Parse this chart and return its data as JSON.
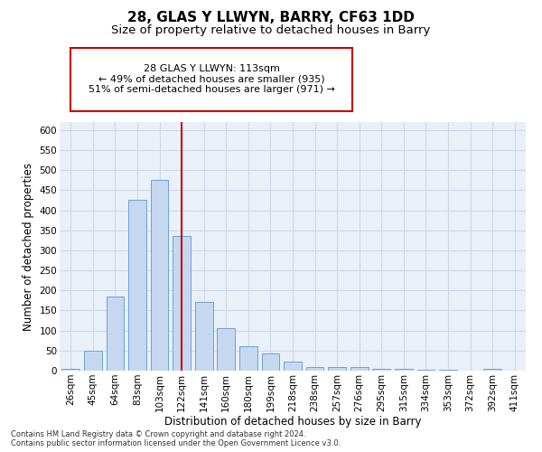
{
  "title": "28, GLAS Y LLWYN, BARRY, CF63 1DD",
  "subtitle": "Size of property relative to detached houses in Barry",
  "xlabel": "Distribution of detached houses by size in Barry",
  "ylabel": "Number of detached properties",
  "categories": [
    "26sqm",
    "45sqm",
    "64sqm",
    "83sqm",
    "103sqm",
    "122sqm",
    "141sqm",
    "160sqm",
    "180sqm",
    "199sqm",
    "218sqm",
    "238sqm",
    "257sqm",
    "276sqm",
    "295sqm",
    "315sqm",
    "334sqm",
    "353sqm",
    "372sqm",
    "392sqm",
    "411sqm"
  ],
  "values": [
    5,
    50,
    185,
    425,
    475,
    335,
    172,
    107,
    60,
    43,
    22,
    10,
    10,
    8,
    5,
    5,
    2,
    2,
    1,
    5,
    1
  ],
  "bar_color": "#c5d8f0",
  "bar_edgecolor": "#6ba3d6",
  "vline_x": 5.0,
  "vline_color": "#cc0000",
  "annotation_text": "28 GLAS Y LLWYN: 113sqm\n← 49% of detached houses are smaller (935)\n51% of semi-detached houses are larger (971) →",
  "annotation_box_edgecolor": "#cc0000",
  "annotation_box_facecolor": "#ffffff",
  "footnote": "Contains HM Land Registry data © Crown copyright and database right 2024.\nContains public sector information licensed under the Open Government Licence v3.0.",
  "ylim": [
    0,
    620
  ],
  "yticks": [
    0,
    50,
    100,
    150,
    200,
    250,
    300,
    350,
    400,
    450,
    500,
    550,
    600
  ],
  "background_color": "#ffffff",
  "grid_color": "#d0d8e8",
  "title_fontsize": 11,
  "subtitle_fontsize": 9.5,
  "axis_label_fontsize": 8.5,
  "tick_fontsize": 7.5,
  "annotation_fontsize": 8,
  "footnote_fontsize": 6
}
